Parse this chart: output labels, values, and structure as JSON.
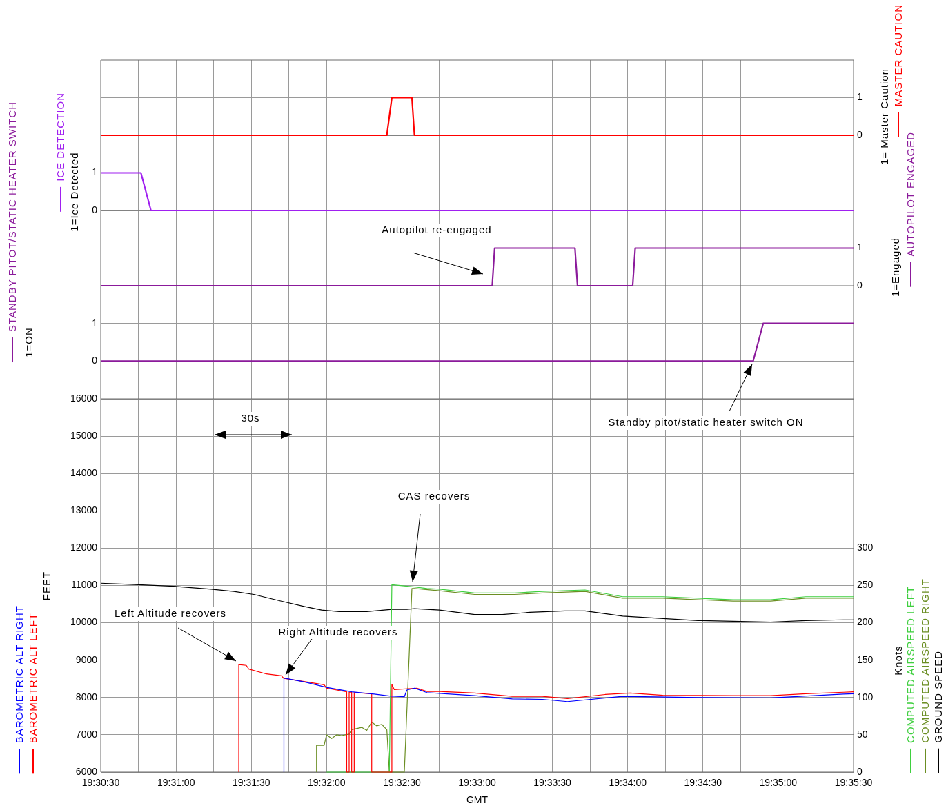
{
  "chart_data": [
    {
      "type": "line",
      "tick_labels": "y",
      "grid": true,
      "legend": "right",
      "marker": "none",
      "xlim": [
        19.50833,
        19.59167
      ],
      "xticks": [
        {
          "value": 19.50833,
          "label": null
        },
        {
          "value": 19.5125,
          "label": null
        },
        {
          "value": 19.51667,
          "label": null
        },
        {
          "value": 19.52083,
          "label": null
        },
        {
          "value": 19.525,
          "label": null
        },
        {
          "value": 19.52917,
          "label": null
        },
        {
          "value": 19.53333,
          "label": null
        },
        {
          "value": 19.5375,
          "label": null
        },
        {
          "value": 19.54167,
          "label": null
        },
        {
          "value": 19.54583,
          "label": null
        },
        {
          "value": 19.55,
          "label": null
        },
        {
          "value": 19.55417,
          "label": null
        },
        {
          "value": 19.55833,
          "label": null
        },
        {
          "value": 19.5625,
          "label": null
        },
        {
          "value": 19.56667,
          "label": null
        },
        {
          "value": 19.57083,
          "label": null
        },
        {
          "value": 19.575,
          "label": null
        },
        {
          "value": 19.57917,
          "label": null
        },
        {
          "value": 19.58333,
          "label": null
        },
        {
          "value": 19.5875,
          "label": null
        },
        {
          "value": 19.59167,
          "label": null
        }
      ],
      "y2lim": [
        0,
        2
      ],
      "y2ticks": [
        0,
        1
      ],
      "y2label": "1= Master Caution",
      "series": [
        {
          "name": "MASTER CAUTION",
          "color": "#ff0000",
          "axis": "y2",
          "x": [
            19.50833,
            19.54,
            19.54056,
            19.54278,
            19.54306,
            19.59167
          ],
          "values": [
            0,
            0,
            1,
            1,
            0,
            0
          ]
        }
      ]
    },
    {
      "type": "line",
      "tick_labels": "y",
      "grid": true,
      "legend": "left",
      "marker": "none",
      "xlim": [
        19.50833,
        19.59167
      ],
      "xticks": [
        {
          "value": 19.50833,
          "label": null
        },
        {
          "value": 19.5125,
          "label": null
        },
        {
          "value": 19.51667,
          "label": null
        },
        {
          "value": 19.52083,
          "label": null
        },
        {
          "value": 19.525,
          "label": null
        },
        {
          "value": 19.52917,
          "label": null
        },
        {
          "value": 19.53333,
          "label": null
        },
        {
          "value": 19.5375,
          "label": null
        },
        {
          "value": 19.54167,
          "label": null
        },
        {
          "value": 19.54583,
          "label": null
        },
        {
          "value": 19.55,
          "label": null
        },
        {
          "value": 19.55417,
          "label": null
        },
        {
          "value": 19.55833,
          "label": null
        },
        {
          "value": 19.5625,
          "label": null
        },
        {
          "value": 19.56667,
          "label": null
        },
        {
          "value": 19.57083,
          "label": null
        },
        {
          "value": 19.575,
          "label": null
        },
        {
          "value": 19.57917,
          "label": null
        },
        {
          "value": 19.58333,
          "label": null
        },
        {
          "value": 19.5875,
          "label": null
        },
        {
          "value": 19.59167,
          "label": null
        }
      ],
      "ylim": [
        0,
        2
      ],
      "yticks": [
        0,
        1
      ],
      "ylabel": "1=Ice Detected",
      "series": [
        {
          "name": "ICE DETECTION",
          "color": "#a020f0",
          "x": [
            19.50833,
            19.51278,
            19.51389,
            19.59167
          ],
          "values": [
            1,
            1,
            0,
            0
          ]
        }
      ]
    },
    {
      "type": "line",
      "tick_labels": "y",
      "grid": true,
      "legend": "right",
      "marker": "none",
      "xlim": [
        19.50833,
        19.59167
      ],
      "xticks": [
        {
          "value": 19.50833,
          "label": null
        },
        {
          "value": 19.5125,
          "label": null
        },
        {
          "value": 19.51667,
          "label": null
        },
        {
          "value": 19.52083,
          "label": null
        },
        {
          "value": 19.525,
          "label": null
        },
        {
          "value": 19.52917,
          "label": null
        },
        {
          "value": 19.53333,
          "label": null
        },
        {
          "value": 19.5375,
          "label": null
        },
        {
          "value": 19.54167,
          "label": null
        },
        {
          "value": 19.54583,
          "label": null
        },
        {
          "value": 19.55,
          "label": null
        },
        {
          "value": 19.55417,
          "label": null
        },
        {
          "value": 19.55833,
          "label": null
        },
        {
          "value": 19.5625,
          "label": null
        },
        {
          "value": 19.56667,
          "label": null
        },
        {
          "value": 19.57083,
          "label": null
        },
        {
          "value": 19.575,
          "label": null
        },
        {
          "value": 19.57917,
          "label": null
        },
        {
          "value": 19.58333,
          "label": null
        },
        {
          "value": 19.5875,
          "label": null
        },
        {
          "value": 19.59167,
          "label": null
        }
      ],
      "y2lim": [
        0,
        2
      ],
      "y2ticks": [
        0,
        1
      ],
      "y2label": "1=Engaged",
      "annotations": [
        "Autopilot re-engaged"
      ],
      "series": [
        {
          "name": "AUTOPILOT ENGAGED",
          "color": "#8b1a9b",
          "axis": "y2",
          "x": [
            19.50833,
            19.55167,
            19.55194,
            19.56083,
            19.56111,
            19.56722,
            19.5675,
            19.59167
          ],
          "values": [
            0,
            0,
            1,
            1,
            0,
            0,
            1,
            1
          ]
        }
      ]
    },
    {
      "type": "line",
      "tick_labels": "y",
      "grid": true,
      "legend": "left",
      "marker": "none",
      "xlim": [
        19.50833,
        19.59167
      ],
      "xticks": [
        {
          "value": 19.50833,
          "label": null
        },
        {
          "value": 19.5125,
          "label": null
        },
        {
          "value": 19.51667,
          "label": null
        },
        {
          "value": 19.52083,
          "label": null
        },
        {
          "value": 19.525,
          "label": null
        },
        {
          "value": 19.52917,
          "label": null
        },
        {
          "value": 19.53333,
          "label": null
        },
        {
          "value": 19.5375,
          "label": null
        },
        {
          "value": 19.54167,
          "label": null
        },
        {
          "value": 19.54583,
          "label": null
        },
        {
          "value": 19.55,
          "label": null
        },
        {
          "value": 19.55417,
          "label": null
        },
        {
          "value": 19.55833,
          "label": null
        },
        {
          "value": 19.5625,
          "label": null
        },
        {
          "value": 19.56667,
          "label": null
        },
        {
          "value": 19.57083,
          "label": null
        },
        {
          "value": 19.575,
          "label": null
        },
        {
          "value": 19.57917,
          "label": null
        },
        {
          "value": 19.58333,
          "label": null
        },
        {
          "value": 19.5875,
          "label": null
        },
        {
          "value": 19.59167,
          "label": null
        }
      ],
      "ylim": [
        -1,
        2
      ],
      "yticks": [
        0,
        1
      ],
      "ylabel": "1=ON",
      "annotations": [
        "Standby pitot/static heater switch ON"
      ],
      "series": [
        {
          "name": "STANDBY PITOT/STATIC HEATER SWITCH",
          "color": "#8b1a9b",
          "x": [
            19.50833,
            19.58056,
            19.58167,
            19.59167
          ],
          "values": [
            0,
            0,
            1,
            1
          ]
        }
      ]
    },
    {
      "type": "line",
      "grid": true,
      "legend": "left",
      "marker": "none",
      "xlabel": "GMT",
      "ylabel": "FEET",
      "y2label": "Knots",
      "xlim": [
        19.50833,
        19.59167
      ],
      "xticks": [
        {
          "value": 19.50833,
          "label": "19:30:30"
        },
        {
          "value": 19.5125,
          "label": null
        },
        {
          "value": 19.51667,
          "label": "19:31:00"
        },
        {
          "value": 19.52083,
          "label": null
        },
        {
          "value": 19.525,
          "label": "19:31:30"
        },
        {
          "value": 19.52917,
          "label": null
        },
        {
          "value": 19.53333,
          "label": "19:32:00"
        },
        {
          "value": 19.5375,
          "label": null
        },
        {
          "value": 19.54167,
          "label": "19:32:30"
        },
        {
          "value": 19.54583,
          "label": null
        },
        {
          "value": 19.55,
          "label": "19:33:00"
        },
        {
          "value": 19.55417,
          "label": null
        },
        {
          "value": 19.55833,
          "label": "19:33:30"
        },
        {
          "value": 19.5625,
          "label": null
        },
        {
          "value": 19.56667,
          "label": "19:34:00"
        },
        {
          "value": 19.57083,
          "label": null
        },
        {
          "value": 19.575,
          "label": "19:34:30"
        },
        {
          "value": 19.57917,
          "label": null
        },
        {
          "value": 19.58333,
          "label": "19:35:00"
        },
        {
          "value": 19.5875,
          "label": null
        },
        {
          "value": 19.59167,
          "label": "19:35:30"
        }
      ],
      "ylim": [
        6000,
        16000
      ],
      "yticks": [
        6000,
        7000,
        8000,
        9000,
        10000,
        11000,
        12000,
        13000,
        14000,
        15000,
        16000
      ],
      "y2lim": [
        0,
        500
      ],
      "y2ticks": [
        0,
        50,
        100,
        150,
        200,
        250,
        300
      ],
      "annotations": [
        "30s",
        "CAS recovers",
        "Left Altitude recovers",
        "Right Altitude recovers"
      ],
      "series": [
        {
          "name": "BAROMETRIC ALT RIGHT",
          "color": "#0000ff",
          "x": [
            19.52861,
            19.52861,
            19.53083,
            19.53333,
            19.53611,
            19.53861,
            19.54028,
            19.54194,
            19.54222,
            19.54306,
            19.54333,
            19.54444,
            19.54583,
            19.54972,
            19.55389,
            19.55722,
            19.56,
            19.56611,
            19.57444,
            19.5825,
            19.59056,
            19.59167
          ],
          "values": [
            6000,
            8520,
            8420,
            8270,
            8150,
            8090,
            8040,
            8020,
            8200,
            8250,
            8230,
            8130,
            8110,
            8050,
            7960,
            7950,
            7890,
            8030,
            8000,
            7990,
            8090,
            8100
          ]
        },
        {
          "name": "BAROMETRIC ALT LEFT",
          "color": "#ff0000",
          "x": [
            19.52361,
            19.52361,
            19.52444,
            19.52472,
            19.52667,
            19.52833,
            19.52861,
            19.53083,
            19.53306,
            19.53333,
            19.53556,
            19.53556,
            19.53583,
            19.53583,
            19.53611,
            19.53611,
            19.53639,
            19.53639,
            19.53833,
            19.53833,
            19.54056,
            19.54056,
            19.54083,
            19.54333,
            19.54444,
            19.54583,
            19.54972,
            19.55389,
            19.55722,
            19.56,
            19.56417,
            19.56694,
            19.57056,
            19.57833,
            19.5825,
            19.58639,
            19.59056,
            19.59167
          ],
          "values": [
            6000,
            8880,
            8860,
            8760,
            8630,
            8580,
            8510,
            8430,
            8340,
            8250,
            8150,
            6000,
            6000,
            8140,
            8140,
            6000,
            6000,
            8130,
            8100,
            6000,
            6000,
            8350,
            8210,
            8250,
            8160,
            8160,
            8120,
            8030,
            8030,
            7970,
            8080,
            8120,
            8060,
            8050,
            8050,
            8100,
            8140,
            8150
          ]
        },
        {
          "name": "COMPUTED AIRSPEED LEFT",
          "color": "#3fcf3f",
          "axis": "y2",
          "x": [
            19.53333,
            19.54028,
            19.54056,
            19.54306,
            19.54444,
            19.54583,
            19.54972,
            19.55417,
            19.55722,
            19.56194,
            19.56611,
            19.57056,
            19.57833,
            19.5825,
            19.58639,
            19.59056,
            19.59167
          ],
          "values": [
            0,
            0,
            251,
            248,
            246,
            245,
            240,
            240,
            242,
            244,
            235,
            235,
            231,
            231,
            235,
            235,
            235
          ]
        },
        {
          "name": "COMPUTED AIRSPEED RIGHT",
          "color": "#6b8e23",
          "axis": "y2",
          "x": [
            19.53222,
            19.53222,
            19.53306,
            19.53333,
            19.53389,
            19.53444,
            19.535,
            19.53583,
            19.53611,
            19.53722,
            19.53778,
            19.53833,
            19.53889,
            19.53944,
            19.54,
            19.54028,
            19.54194,
            19.54278,
            19.54306,
            19.54583,
            19.54972,
            19.55417,
            19.55722,
            19.56194,
            19.56611,
            19.57056,
            19.57833,
            19.5825,
            19.58639,
            19.59056,
            19.59167
          ],
          "values": [
            0,
            36,
            36,
            50,
            45,
            50,
            49,
            51,
            57,
            60,
            56,
            67,
            62,
            64,
            57,
            0,
            0,
            246,
            246,
            243,
            238,
            238,
            240,
            242,
            233,
            233,
            229,
            229,
            233,
            233,
            233
          ]
        },
        {
          "name": "GROUND SPEED",
          "color": "#000000",
          "axis": "y2",
          "x": [
            19.50833,
            19.5125,
            19.51639,
            19.52056,
            19.52306,
            19.52528,
            19.52833,
            19.53083,
            19.53278,
            19.53472,
            19.53778,
            19.54056,
            19.54222,
            19.54306,
            19.54583,
            19.54972,
            19.55278,
            19.55583,
            19.55972,
            19.56194,
            19.56611,
            19.57028,
            19.57444,
            19.57833,
            19.5825,
            19.58639,
            19.59056,
            19.59167
          ],
          "values": [
            253,
            251,
            249,
            245,
            242,
            238,
            229,
            222,
            217,
            215,
            215,
            218,
            218,
            219,
            217,
            211,
            211,
            214,
            216,
            216,
            209,
            206,
            203,
            202,
            201,
            203,
            204,
            204
          ]
        }
      ]
    }
  ]
}
